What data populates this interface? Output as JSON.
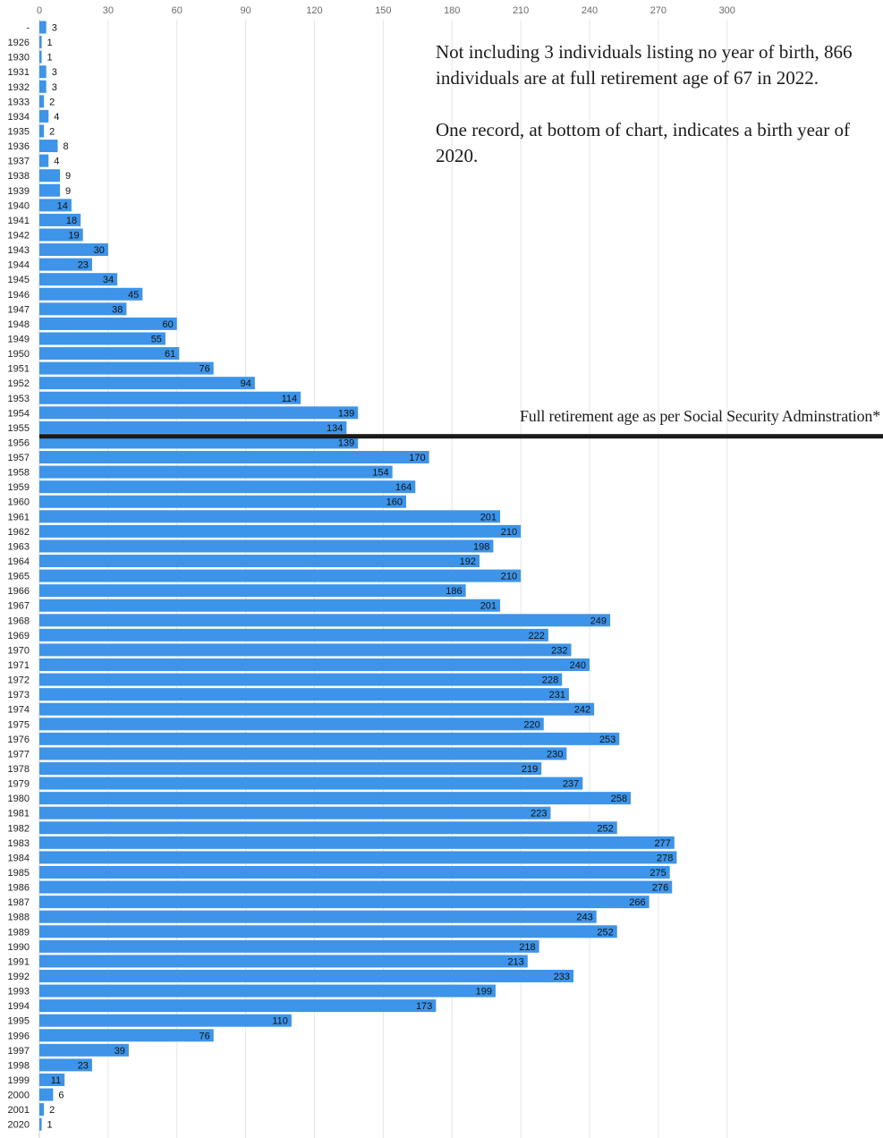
{
  "chart_data": {
    "type": "bar",
    "orientation": "horizontal",
    "title": "",
    "xlabel": "",
    "ylabel": "",
    "xlim": [
      0,
      310
    ],
    "x_ticks": [
      0,
      30,
      60,
      90,
      120,
      150,
      180,
      210,
      240,
      270,
      300
    ],
    "grid": true,
    "bar_color": "#3d94e8",
    "categories": [
      "-",
      "1926",
      "1930",
      "1931",
      "1932",
      "1933",
      "1934",
      "1935",
      "1936",
      "1937",
      "1938",
      "1939",
      "1940",
      "1941",
      "1942",
      "1943",
      "1944",
      "1945",
      "1946",
      "1947",
      "1948",
      "1949",
      "1950",
      "1951",
      "1952",
      "1953",
      "1954",
      "1955",
      "1956",
      "1957",
      "1958",
      "1959",
      "1960",
      "1961",
      "1962",
      "1963",
      "1964",
      "1965",
      "1966",
      "1967",
      "1968",
      "1969",
      "1970",
      "1971",
      "1972",
      "1973",
      "1974",
      "1975",
      "1976",
      "1977",
      "1978",
      "1979",
      "1980",
      "1981",
      "1982",
      "1983",
      "1984",
      "1985",
      "1986",
      "1987",
      "1988",
      "1989",
      "1990",
      "1991",
      "1992",
      "1993",
      "1994",
      "1995",
      "1996",
      "1997",
      "1998",
      "1999",
      "2000",
      "2001",
      "2020"
    ],
    "values": [
      3,
      1,
      1,
      3,
      3,
      2,
      4,
      2,
      8,
      4,
      9,
      9,
      14,
      18,
      19,
      30,
      23,
      34,
      45,
      38,
      60,
      55,
      61,
      76,
      94,
      114,
      139,
      134,
      139,
      170,
      154,
      164,
      160,
      201,
      210,
      198,
      192,
      210,
      186,
      201,
      249,
      222,
      232,
      240,
      228,
      231,
      242,
      220,
      253,
      230,
      219,
      237,
      258,
      223,
      252,
      277,
      278,
      275,
      276,
      266,
      243,
      252,
      218,
      213,
      233,
      199,
      173,
      110,
      76,
      39,
      23,
      11,
      6,
      2,
      1
    ],
    "reference_line": {
      "between_categories": [
        "1955",
        "1956"
      ],
      "label": "Full retirement age as per Social Security Adminstration*",
      "color": "#1a1a1a"
    },
    "annotations": [
      "Not including 3 individuals listing no year of birth, 866 individuals are at full retirement age of 67 in 2022.",
      "One record, at bottom of chart, indicates a birth year of 2020."
    ]
  }
}
